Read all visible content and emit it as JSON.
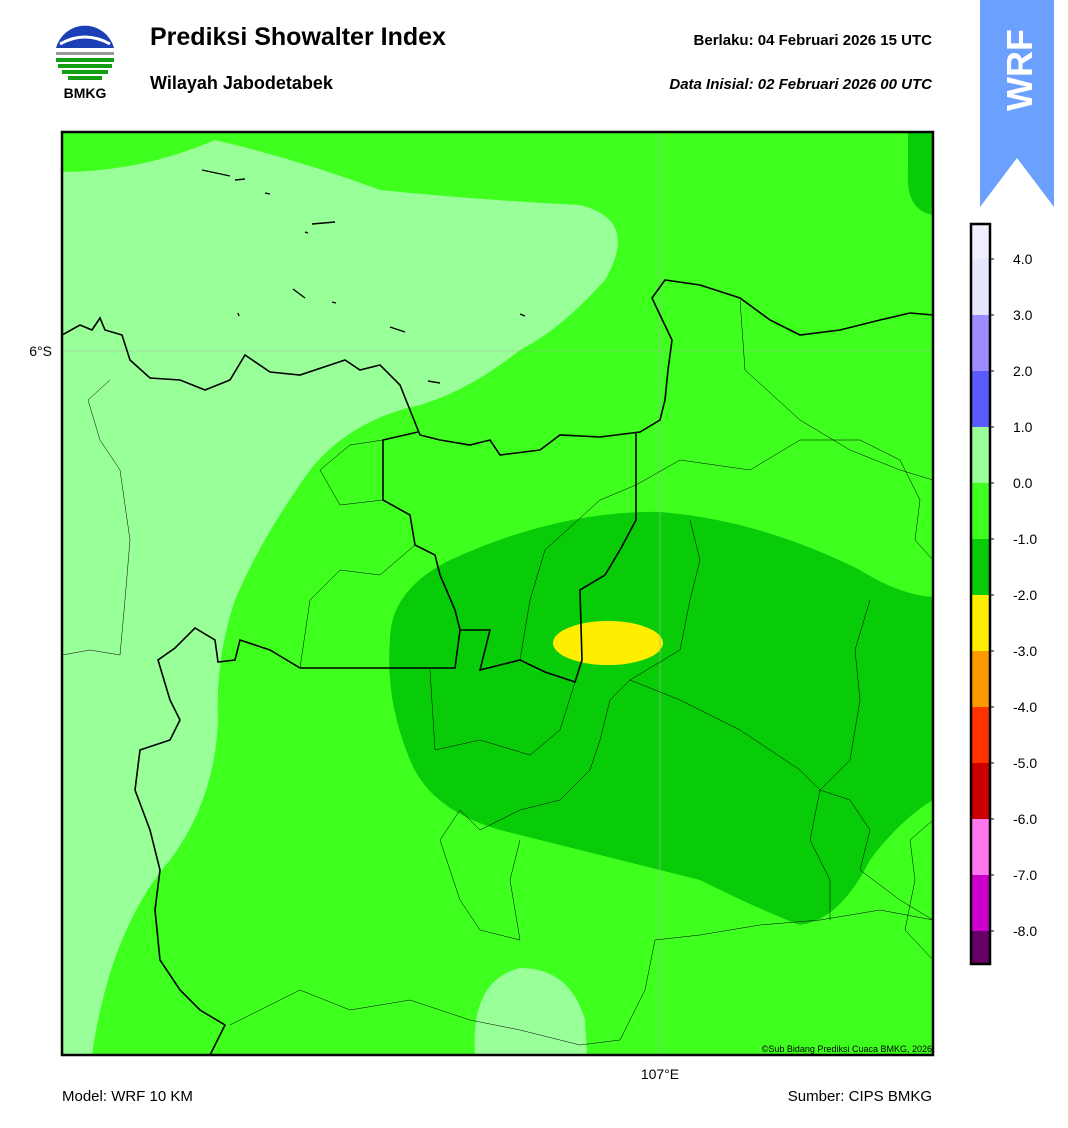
{
  "header": {
    "title": "Prediksi Showalter Index",
    "subtitle": "Wilayah Jabodetabek",
    "valid": "Berlaku:  04 Februari 2026 15 UTC",
    "init": "Data Inisial:  02 Februari 2026 00 UTC",
    "logo_text": "BMKG"
  },
  "banner": "WRF",
  "map": {
    "lat_label": "6°S",
    "lon_label": "107°E",
    "credit": "©Sub Bidang Prediksi Cuaca BMKG, 2026"
  },
  "legend": {
    "labels": [
      "4.0",
      "3.0",
      "2.0",
      "1.0",
      "0.0",
      "-1.0",
      "-2.0",
      "-3.0",
      "-4.0",
      "-5.0",
      "-6.0",
      "-7.0",
      "-8.0"
    ]
  },
  "footer": {
    "model": "Model: WRF 10 KM",
    "source": "Sumber: CIPS BMKG"
  }
}
